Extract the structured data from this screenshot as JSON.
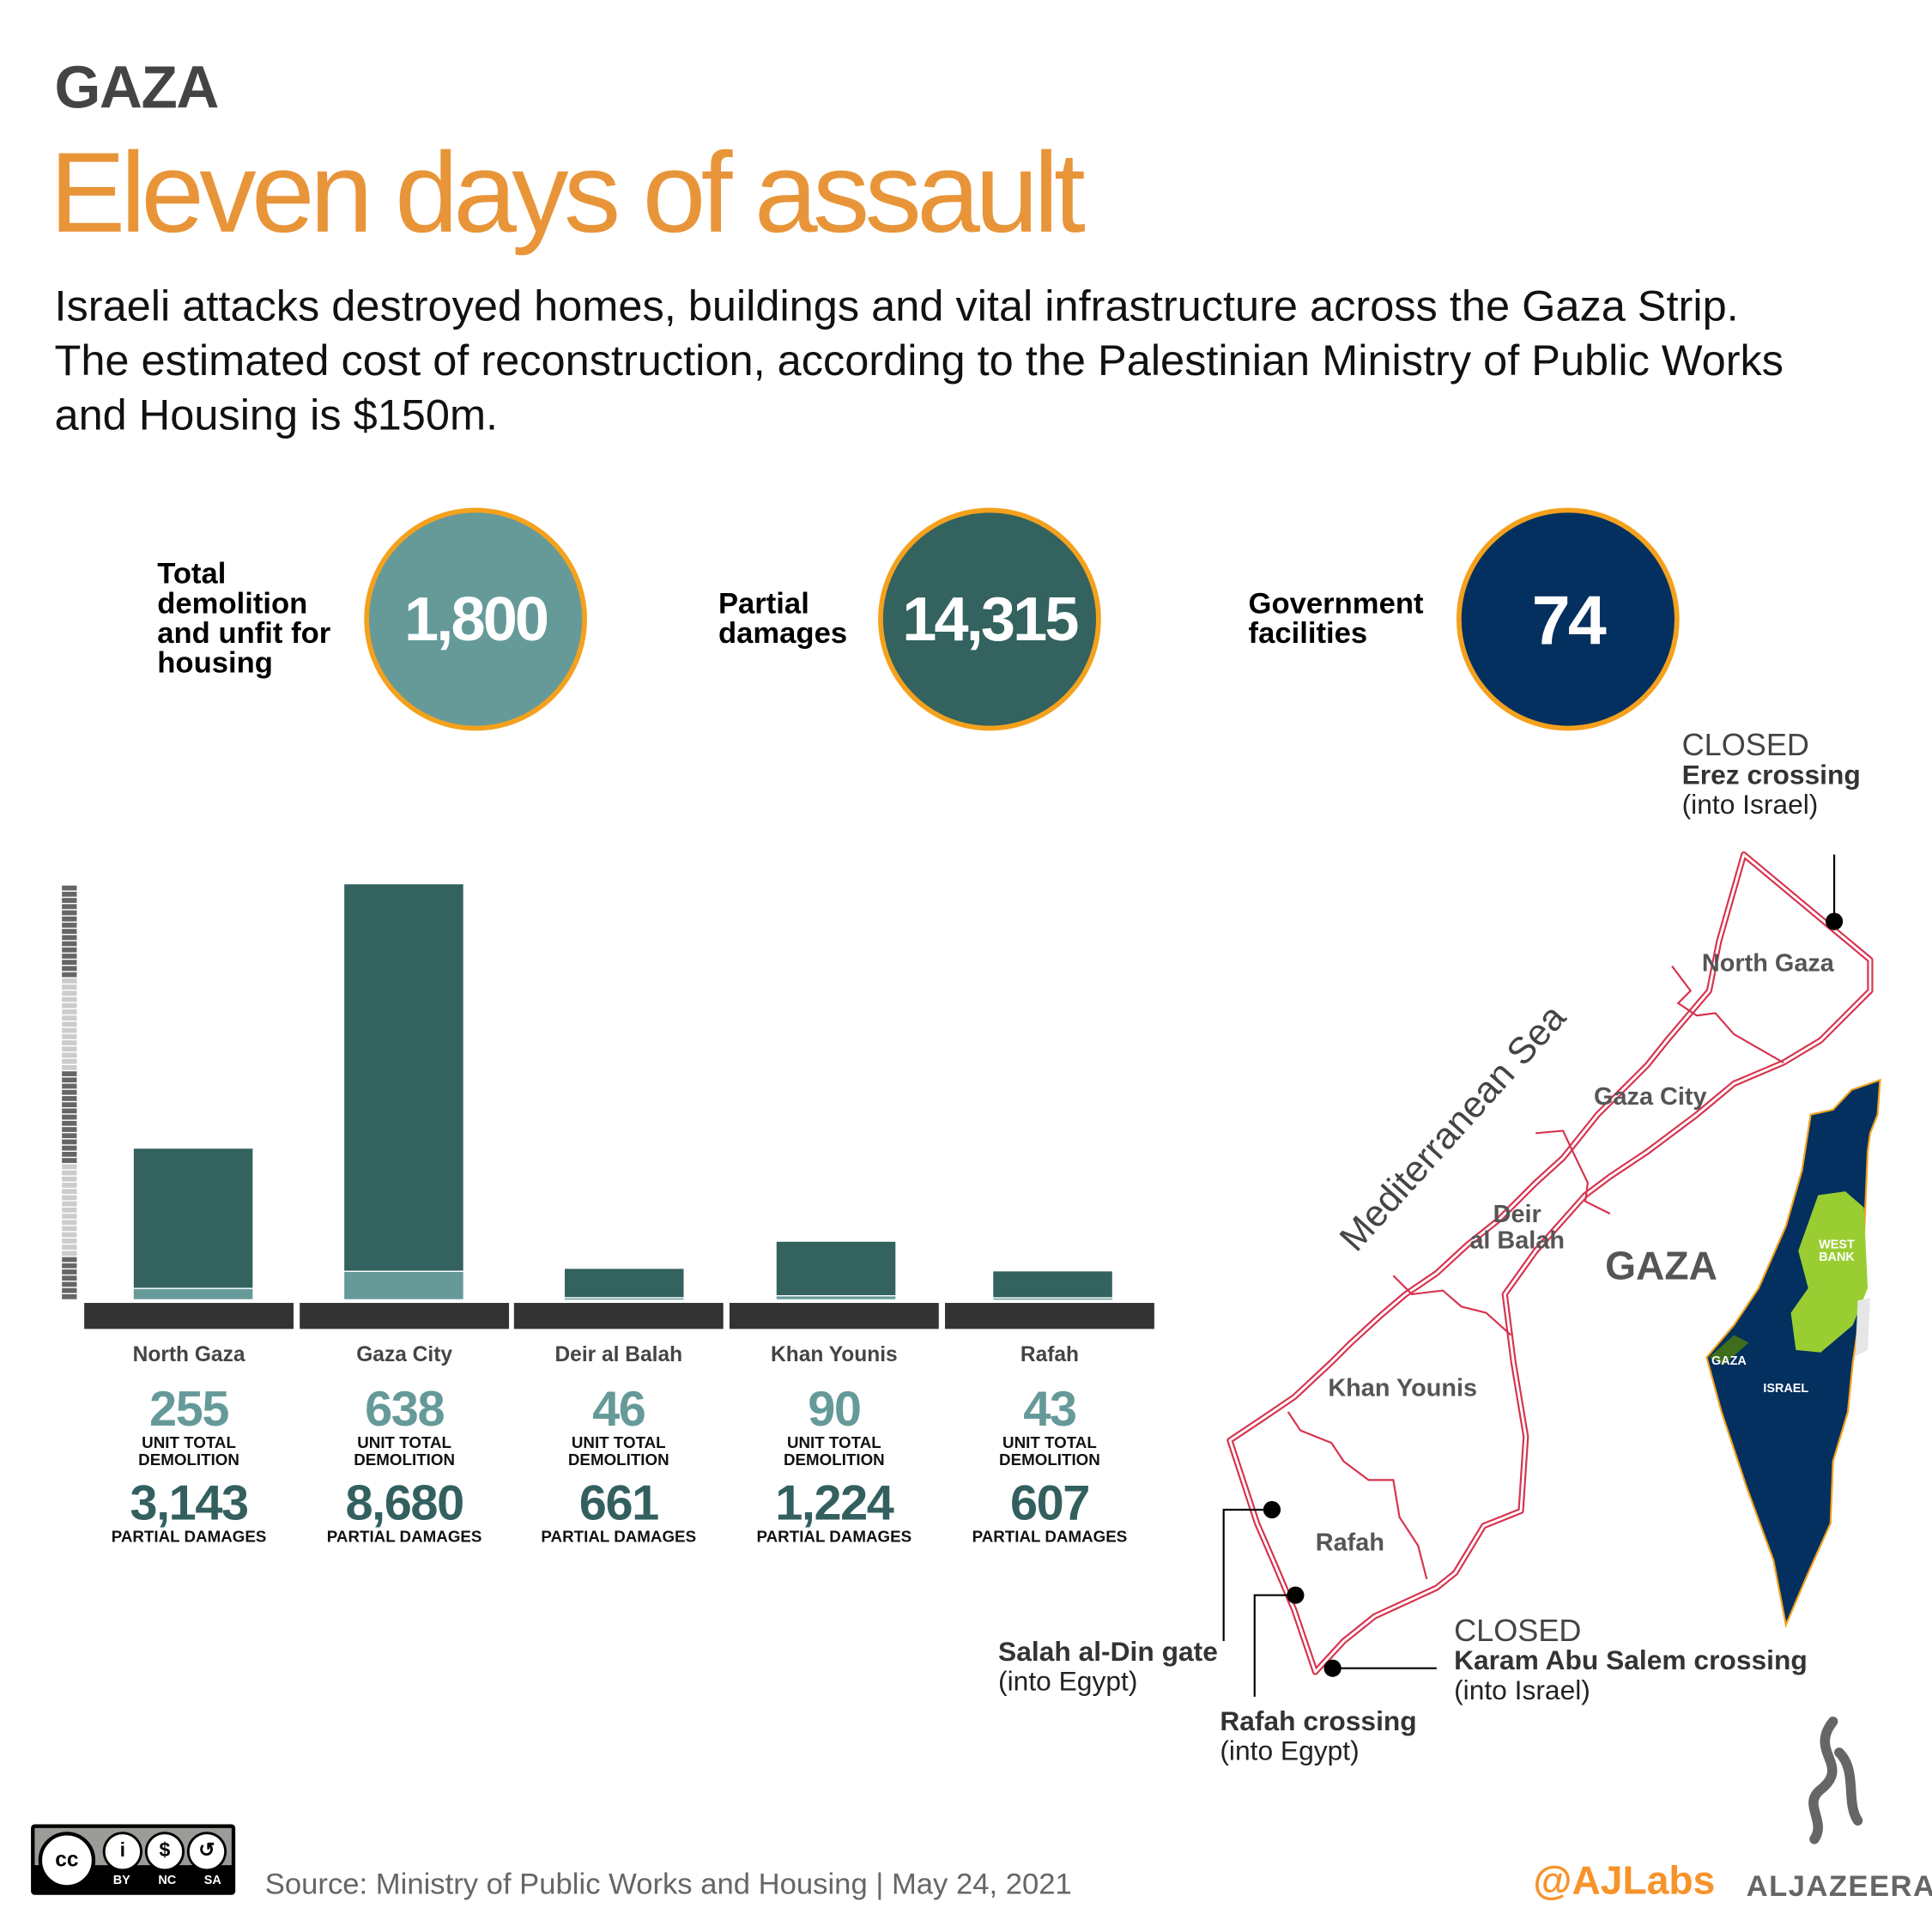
{
  "header": {
    "kicker": "GAZA",
    "title": "Eleven days of assault",
    "intro": "Israeli attacks destroyed homes, buildings and vital infrastructure across the Gaza Strip. The estimated cost of reconstruction, according to the Palestinian Ministry of Public Works and Housing is $150m."
  },
  "stats": [
    {
      "label": "Total demolition and unfit for housing",
      "value": "1,800",
      "color": "#659a99"
    },
    {
      "label": "Partial damages",
      "value": "14,315",
      "color": "#33625f"
    },
    {
      "label": "Government facilities",
      "value": "74",
      "color": "#04305f"
    }
  ],
  "chart_data": {
    "type": "bar",
    "stacked": true,
    "categories": [
      "North Gaza",
      "Gaza City",
      "Deir al Balah",
      "Khan Younis",
      "Rafah"
    ],
    "series": [
      {
        "name": "UNIT TOTAL DEMOLITION",
        "values": [
          255,
          638,
          46,
          90,
          43
        ],
        "color": "#659a99"
      },
      {
        "name": "PARTIAL DAMAGES",
        "values": [
          3143,
          8680,
          661,
          1224,
          607
        ],
        "color": "#33625f"
      }
    ],
    "labels": {
      "demolition": [
        "255",
        "638",
        "46",
        "90",
        "43"
      ],
      "partial": [
        "3,143",
        "8,680",
        "661",
        "1,224",
        "607"
      ]
    },
    "grid": false
  },
  "map": {
    "sea": "Mediterranean Sea",
    "title": "GAZA",
    "regions": [
      "North Gaza",
      "Gaza City",
      "Deir",
      "al Balah",
      "Khan Younis",
      "Rafah"
    ],
    "inset": {
      "west_bank_1": "WEST",
      "west_bank_2": "BANK",
      "gaza": "GAZA",
      "israel": "ISRAEL"
    },
    "crossings": {
      "erez": {
        "status": "CLOSED",
        "name": "Erez crossing",
        "note": "(into Israel)"
      },
      "salah": {
        "name": "Salah al-Din gate",
        "note": "(into Egypt)"
      },
      "rafah": {
        "name": "Rafah crossing",
        "note": "(into Egypt)"
      },
      "karam": {
        "status": "CLOSED",
        "name": "Karam Abu Salem crossing",
        "note": "(into Israel)"
      }
    },
    "colors": {
      "border": "#d6334e",
      "israel": "#03305f",
      "west_bank": "#9acd32",
      "accent": "#f4a11d"
    }
  },
  "footer": {
    "license": [
      "BY",
      "NC",
      "SA"
    ],
    "source": "Source: Ministry of Public Works and Housing  |  May 24, 2021",
    "handle": "@AJLabs",
    "brand": "ALJAZEERA"
  }
}
